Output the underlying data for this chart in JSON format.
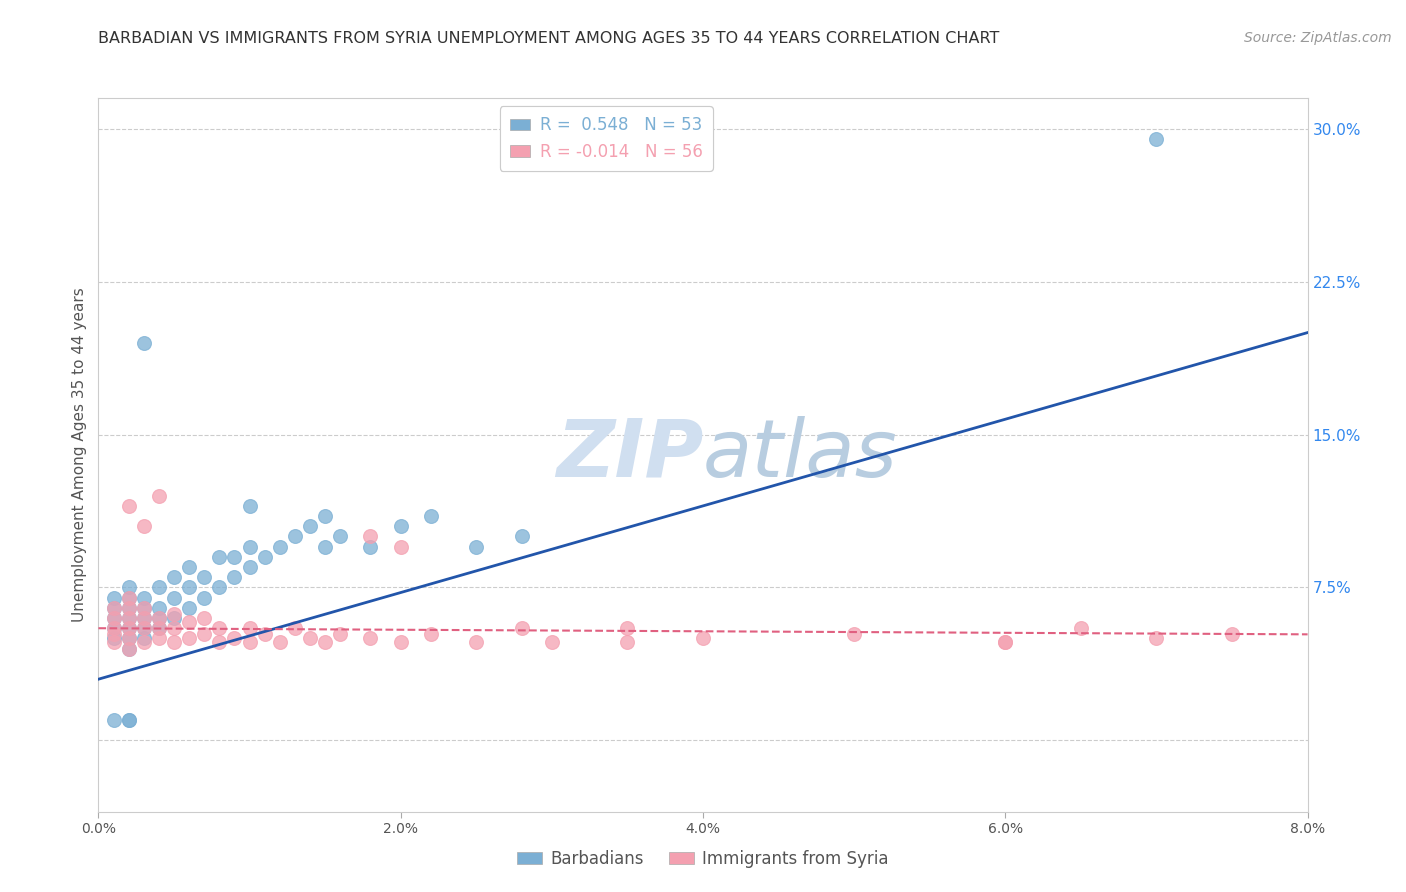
{
  "title": "BARBADIAN VS IMMIGRANTS FROM SYRIA UNEMPLOYMENT AMONG AGES 35 TO 44 YEARS CORRELATION CHART",
  "source": "Source: ZipAtlas.com",
  "ylabel": "Unemployment Among Ages 35 to 44 years",
  "right_yticks": [
    0.0,
    0.075,
    0.15,
    0.225,
    0.3
  ],
  "right_yticklabels": [
    "",
    "7.5%",
    "15.0%",
    "22.5%",
    "30.0%"
  ],
  "xlim": [
    0.0,
    0.08
  ],
  "ylim": [
    -0.035,
    0.315
  ],
  "blue_R": 0.548,
  "blue_N": 53,
  "pink_R": -0.014,
  "pink_N": 56,
  "blue_color": "#7BAFD4",
  "pink_color": "#F4A0B0",
  "blue_line_color": "#2255AA",
  "pink_line_color": "#E06080",
  "watermark_color": "#D0DFF0",
  "legend_label_blue": "Barbadians",
  "legend_label_pink": "Immigrants from Syria",
  "blue_scatter_x": [
    0.001,
    0.001,
    0.001,
    0.001,
    0.001,
    0.002,
    0.002,
    0.002,
    0.002,
    0.002,
    0.002,
    0.002,
    0.003,
    0.003,
    0.003,
    0.003,
    0.003,
    0.004,
    0.004,
    0.004,
    0.004,
    0.005,
    0.005,
    0.005,
    0.006,
    0.006,
    0.006,
    0.007,
    0.007,
    0.008,
    0.008,
    0.009,
    0.009,
    0.01,
    0.01,
    0.011,
    0.012,
    0.013,
    0.014,
    0.015,
    0.016,
    0.018,
    0.02,
    0.022,
    0.025,
    0.028,
    0.01,
    0.015,
    0.003,
    0.002,
    0.001,
    0.07,
    0.002
  ],
  "blue_scatter_y": [
    0.05,
    0.055,
    0.06,
    0.065,
    0.07,
    0.045,
    0.05,
    0.055,
    0.06,
    0.065,
    0.07,
    0.075,
    0.05,
    0.055,
    0.06,
    0.065,
    0.07,
    0.055,
    0.06,
    0.065,
    0.075,
    0.06,
    0.07,
    0.08,
    0.065,
    0.075,
    0.085,
    0.07,
    0.08,
    0.075,
    0.09,
    0.08,
    0.09,
    0.085,
    0.095,
    0.09,
    0.095,
    0.1,
    0.105,
    0.095,
    0.1,
    0.095,
    0.105,
    0.11,
    0.095,
    0.1,
    0.115,
    0.11,
    0.195,
    0.01,
    0.01,
    0.295,
    0.01
  ],
  "pink_scatter_x": [
    0.001,
    0.001,
    0.001,
    0.001,
    0.001,
    0.002,
    0.002,
    0.002,
    0.002,
    0.002,
    0.002,
    0.003,
    0.003,
    0.003,
    0.003,
    0.004,
    0.004,
    0.004,
    0.005,
    0.005,
    0.005,
    0.006,
    0.006,
    0.007,
    0.007,
    0.008,
    0.008,
    0.009,
    0.01,
    0.01,
    0.011,
    0.012,
    0.013,
    0.014,
    0.015,
    0.016,
    0.018,
    0.02,
    0.022,
    0.025,
    0.028,
    0.03,
    0.035,
    0.04,
    0.05,
    0.06,
    0.065,
    0.07,
    0.075,
    0.002,
    0.003,
    0.004,
    0.018,
    0.02,
    0.035,
    0.06
  ],
  "pink_scatter_y": [
    0.048,
    0.052,
    0.055,
    0.06,
    0.065,
    0.045,
    0.05,
    0.055,
    0.06,
    0.065,
    0.07,
    0.048,
    0.055,
    0.06,
    0.065,
    0.05,
    0.055,
    0.06,
    0.048,
    0.055,
    0.062,
    0.05,
    0.058,
    0.052,
    0.06,
    0.048,
    0.055,
    0.05,
    0.055,
    0.048,
    0.052,
    0.048,
    0.055,
    0.05,
    0.048,
    0.052,
    0.05,
    0.048,
    0.052,
    0.048,
    0.055,
    0.048,
    0.055,
    0.05,
    0.052,
    0.048,
    0.055,
    0.05,
    0.052,
    0.115,
    0.105,
    0.12,
    0.1,
    0.095,
    0.048,
    0.048
  ],
  "blue_trendline_x": [
    0.0,
    0.08
  ],
  "blue_trendline_y": [
    0.03,
    0.2
  ],
  "pink_trendline_x": [
    0.0,
    0.08
  ],
  "pink_trendline_y": [
    0.055,
    0.052
  ]
}
